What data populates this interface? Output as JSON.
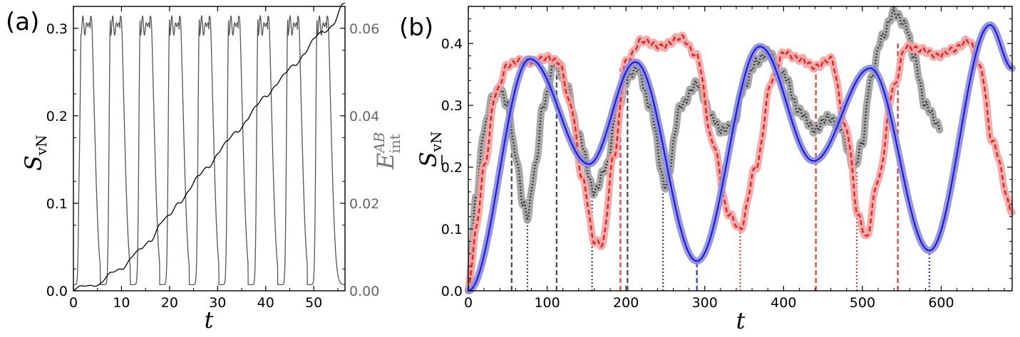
{
  "chart_data": [
    {
      "panel_label": "(a)",
      "type": "line",
      "xlabel": "t",
      "ylabel_left": {
        "symbol": "S",
        "subscript": "vN"
      },
      "ylabel_right": {
        "symbol": "E",
        "superscript": "AB",
        "subscript": "int"
      },
      "xlim": [
        0,
        56.5
      ],
      "ylim_left": [
        0,
        0.325
      ],
      "ylim_right": [
        0,
        0.065
      ],
      "xticks": [
        "0",
        "10",
        "20",
        "30",
        "40",
        "50"
      ],
      "yticks_left": [
        "0.0",
        "0.1",
        "0.2",
        "0.3"
      ],
      "yticks_right": [
        "0.00",
        "0.02",
        "0.04",
        "0.06"
      ],
      "colors": {
        "svn": "#555555",
        "eint": "#000000",
        "right_axis": "#666666"
      },
      "series": [
        {
          "name": "S_vN (oscillating, left axis)",
          "period": 6.14,
          "peaks_t": [
            2.5,
            8.7,
            14.9,
            21.0,
            27.2,
            33.3,
            39.4,
            45.6,
            51.7
          ],
          "peak_value": 0.31,
          "min_value": 0.007
        },
        {
          "name": "E_int^AB (growing, right axis)",
          "x": [
            0,
            2,
            4,
            6,
            8,
            10,
            12,
            14,
            16,
            18,
            20,
            22,
            24,
            26,
            28,
            30,
            32,
            34,
            36,
            38,
            40,
            42,
            44,
            46,
            48,
            50,
            52,
            54,
            56
          ],
          "values": [
            0.0,
            0.0004,
            0.0018,
            0.0021,
            0.0035,
            0.0055,
            0.0078,
            0.0088,
            0.0118,
            0.0156,
            0.0165,
            0.0205,
            0.0233,
            0.0255,
            0.0285,
            0.0318,
            0.0335,
            0.0365,
            0.0395,
            0.0415,
            0.0445,
            0.0475,
            0.049,
            0.0515,
            0.0548,
            0.057,
            0.059,
            0.0615,
            0.065
          ]
        }
      ]
    },
    {
      "panel_label": "(b)",
      "type": "line",
      "xlabel": "t",
      "ylabel": {
        "symbol": "S",
        "subscript": "vN",
        "bar": true
      },
      "xlim": [
        0,
        690
      ],
      "ylim": [
        0,
        0.46
      ],
      "xticks": [
        "0",
        "100",
        "200",
        "300",
        "400",
        "500",
        "600"
      ],
      "yticks": [
        "0.0",
        "0.1",
        "0.2",
        "0.3",
        "0.4"
      ],
      "colors": {
        "gray": "#222222",
        "gray_band": "#9e9e9e",
        "red": "#e8231c",
        "red_band": "#f4a3a3",
        "blue": "#1a1aee",
        "blue_band": "#8e8ed6"
      },
      "series": [
        {
          "name": "gray dotted",
          "style": "dotted",
          "x": [
            0,
            10,
            20,
            30,
            40,
            50,
            60,
            70,
            75,
            85,
            95,
            110,
            125,
            140,
            160,
            175,
            190,
            205,
            215,
            230,
            250,
            270,
            290,
            310,
            320,
            335,
            350,
            365,
            380,
            400,
            420,
            440,
            455,
            470,
            490,
            500,
            510,
            525,
            540,
            555,
            565,
            580,
            598
          ],
          "values": [
            0.0,
            0.15,
            0.26,
            0.31,
            0.325,
            0.3,
            0.22,
            0.14,
            0.12,
            0.2,
            0.3,
            0.37,
            0.33,
            0.25,
            0.16,
            0.2,
            0.3,
            0.35,
            0.36,
            0.3,
            0.17,
            0.3,
            0.335,
            0.28,
            0.26,
            0.265,
            0.33,
            0.37,
            0.385,
            0.35,
            0.29,
            0.26,
            0.28,
            0.27,
            0.2,
            0.24,
            0.34,
            0.41,
            0.45,
            0.43,
            0.38,
            0.3,
            0.265
          ]
        },
        {
          "name": "red dashed",
          "style": "dashed",
          "x": [
            0,
            10,
            20,
            35,
            50,
            65,
            80,
            100,
            115,
            130,
            145,
            160,
            170,
            185,
            200,
            220,
            245,
            270,
            290,
            310,
            330,
            345,
            365,
            385,
            400,
            420,
            440,
            460,
            480,
            495,
            505,
            520,
            540,
            555,
            575,
            595,
            615,
            635,
            650,
            665,
            690
          ],
          "values": [
            0.0,
            0.1,
            0.2,
            0.32,
            0.365,
            0.372,
            0.37,
            0.377,
            0.37,
            0.3,
            0.18,
            0.08,
            0.075,
            0.22,
            0.37,
            0.405,
            0.395,
            0.41,
            0.38,
            0.24,
            0.125,
            0.1,
            0.2,
            0.34,
            0.385,
            0.375,
            0.362,
            0.375,
            0.26,
            0.12,
            0.085,
            0.18,
            0.33,
            0.395,
            0.39,
            0.38,
            0.39,
            0.405,
            0.36,
            0.24,
            0.13
          ]
        },
        {
          "name": "blue solid",
          "style": "solid",
          "period": 293,
          "first_peak_t": 78,
          "first_peak_value": 0.375,
          "troughs_t": [
            153,
            290,
            438,
            585
          ],
          "trough_values": [
            0.205,
            0.048,
            0.21,
            0.065
          ],
          "peaks_t": [
            78,
            212,
            370,
            510,
            662
          ],
          "peak_values": [
            0.375,
            0.37,
            0.395,
            0.36,
            0.43
          ]
        }
      ],
      "vertical_markers": [
        {
          "t": 55,
          "value": 0.285,
          "color": "gray",
          "style": "dashed"
        },
        {
          "t": 75,
          "value": 0.125,
          "color": "gray",
          "style": "dotted"
        },
        {
          "t": 112,
          "value": 0.37,
          "color": "gray",
          "style": "dashed"
        },
        {
          "t": 157,
          "value": 0.165,
          "color": "gray",
          "style": "dotted"
        },
        {
          "t": 193,
          "value": 0.36,
          "color": "red",
          "style": "dashed"
        },
        {
          "t": 202,
          "value": 0.355,
          "color": "gray",
          "style": "dashed"
        },
        {
          "t": 247,
          "value": 0.17,
          "color": "gray",
          "style": "dotted"
        },
        {
          "t": 290,
          "value": 0.048,
          "color": "blue",
          "style": "dashed"
        },
        {
          "t": 345,
          "value": 0.1,
          "color": "red",
          "style": "dotted"
        },
        {
          "t": 441,
          "value": 0.36,
          "color": "red",
          "style": "dashed"
        },
        {
          "t": 493,
          "value": 0.195,
          "color": "red",
          "style": "dotted"
        },
        {
          "t": 545,
          "value": 0.4,
          "color": "red",
          "style": "dashed"
        },
        {
          "t": 585,
          "value": 0.065,
          "color": "blue",
          "style": "dotted"
        }
      ]
    }
  ]
}
